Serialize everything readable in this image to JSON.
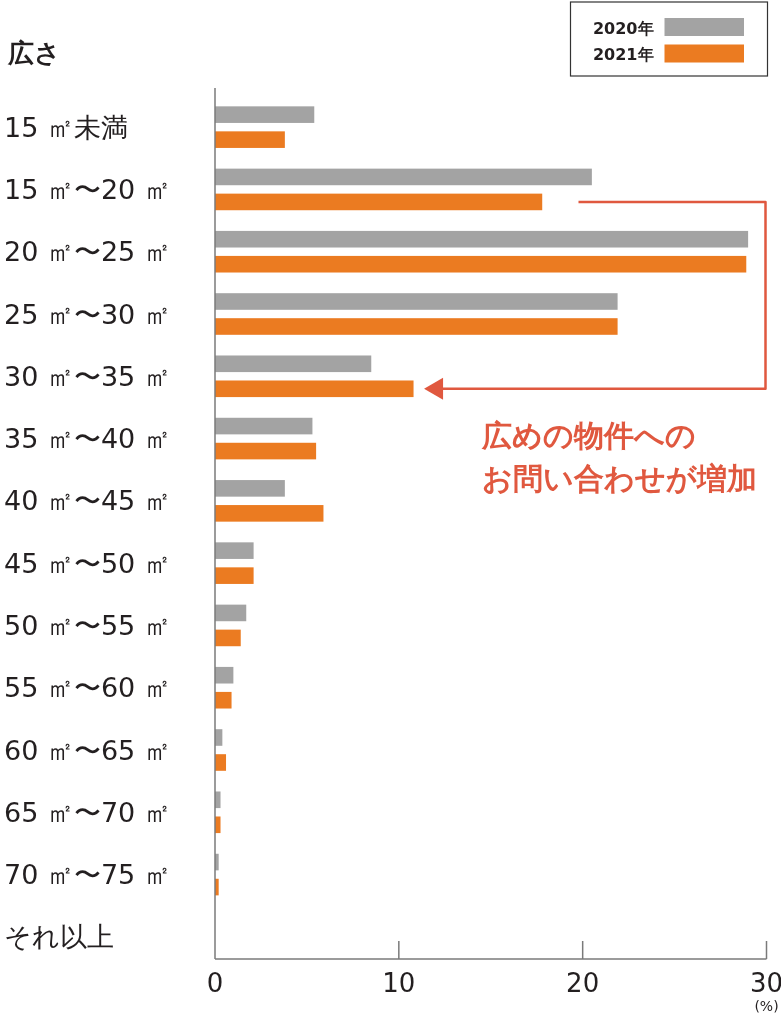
{
  "chart_data": {
    "type": "bar",
    "orientation": "horizontal",
    "ylabel": "広さ",
    "xlabel": "(%)",
    "categories": [
      "15 ㎡未満",
      "15 ㎡〜20 ㎡",
      "20 ㎡〜25 ㎡",
      "25 ㎡〜30 ㎡",
      "30 ㎡〜35 ㎡",
      "35 ㎡〜40 ㎡",
      "40 ㎡〜45 ㎡",
      "45 ㎡〜50 ㎡",
      "50 ㎡〜55 ㎡",
      "55 ㎡〜60 ㎡",
      "60 ㎡〜65 ㎡",
      "65 ㎡〜70 ㎡",
      "70 ㎡〜75 ㎡",
      "それ以上"
    ],
    "series": [
      {
        "name": "2020年",
        "color": "#a3a3a3",
        "values": [
          5.4,
          20.5,
          29.0,
          21.9,
          8.5,
          5.3,
          3.8,
          2.1,
          1.7,
          1.0,
          0.4,
          0.3,
          0.2,
          null
        ]
      },
      {
        "name": "2021年",
        "color": "#eb7b21",
        "values": [
          3.8,
          17.8,
          28.9,
          21.9,
          10.8,
          5.5,
          5.9,
          2.1,
          1.4,
          0.9,
          0.6,
          0.3,
          0.2,
          null
        ]
      }
    ],
    "xlim": [
      0,
      30
    ],
    "xticks": [
      0,
      10,
      20,
      30
    ],
    "legend": "top right",
    "annotations": [
      {
        "text": "広めの物件へのお問い合わせが増加",
        "x": 10.8,
        "y": "30 ㎡〜35 ㎡"
      }
    ]
  }
}
